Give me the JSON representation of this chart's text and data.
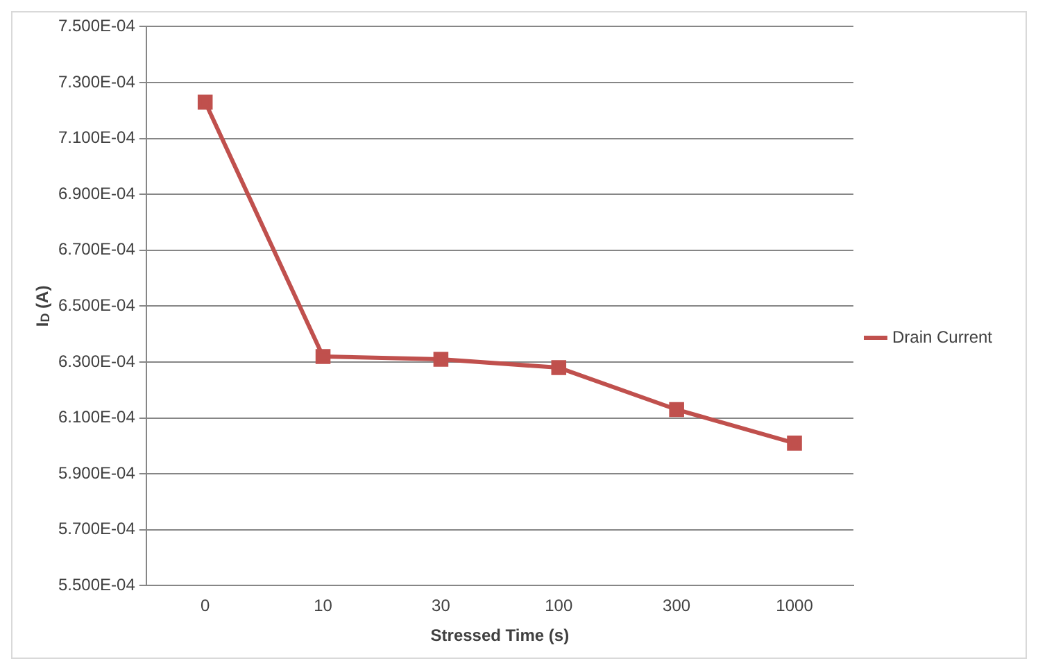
{
  "chart_data": {
    "type": "line",
    "xlabel": "Stressed Time (s)",
    "ylabel": "I$_{D}$ (A)",
    "categories": [
      "0",
      "10",
      "30",
      "100",
      "300",
      "1000"
    ],
    "series": [
      {
        "name": "Drain Current",
        "color": "#c0504d",
        "values": [
          0.000723,
          0.000632,
          0.000631,
          0.000628,
          0.000613,
          0.000601
        ]
      }
    ],
    "ylim": [
      0.00055,
      0.00075
    ],
    "yticks": [
      {
        "value": 0.00055,
        "label": "5.500E-04"
      },
      {
        "value": 0.00057,
        "label": "5.700E-04"
      },
      {
        "value": 0.00059,
        "label": "5.900E-04"
      },
      {
        "value": 0.00061,
        "label": "6.100E-04"
      },
      {
        "value": 0.00063,
        "label": "6.300E-04"
      },
      {
        "value": 0.00065,
        "label": "6.500E-04"
      },
      {
        "value": 0.00067,
        "label": "6.700E-04"
      },
      {
        "value": 0.00069,
        "label": "6.900E-04"
      },
      {
        "value": 0.00071,
        "label": "7.100E-04"
      },
      {
        "value": 0.00073,
        "label": "7.300E-04"
      },
      {
        "value": 0.00075,
        "label": "7.500E-04"
      }
    ],
    "grid": "y",
    "legend": "right",
    "marker": "square",
    "line_style": "solid"
  }
}
